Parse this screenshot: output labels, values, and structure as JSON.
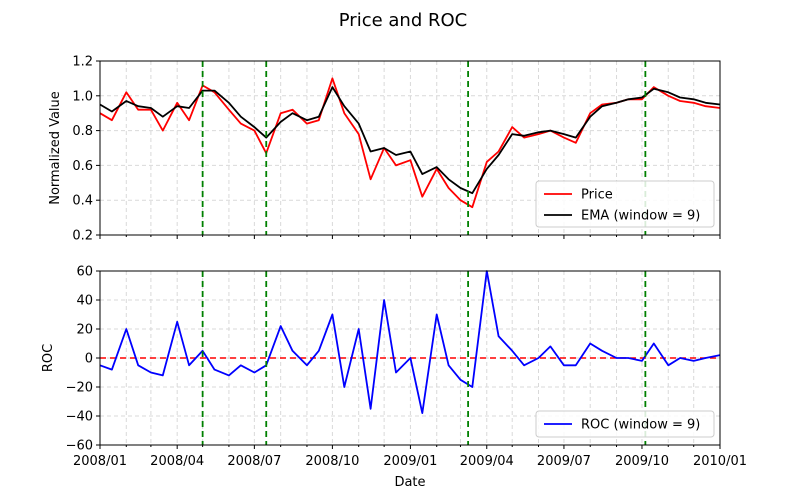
{
  "title": "Price and ROC",
  "colors": {
    "price": "#ff0000",
    "ema": "#000000",
    "roc": "#0000ff",
    "zero_line": "#ff0000",
    "event_lines": "#008000",
    "grid": "#d9d9d9"
  },
  "chart_data": [
    {
      "type": "line",
      "ylabel": "Normalized Value",
      "xlabel": "",
      "ylim": [
        0.2,
        1.2
      ],
      "yticks": [
        "0.2",
        "0.4",
        "0.6",
        "0.8",
        "1.0",
        "1.2"
      ],
      "grid": true,
      "legend_position": "lower-right",
      "event_dates": [
        "2008-05-01",
        "2008-07-15",
        "2009-03-10",
        "2009-10-05"
      ],
      "series": [
        {
          "name": "Price",
          "x": [
            "2008-01-01",
            "2008-01-15",
            "2008-02-01",
            "2008-02-15",
            "2008-03-01",
            "2008-03-15",
            "2008-04-01",
            "2008-04-15",
            "2008-05-01",
            "2008-05-15",
            "2008-06-01",
            "2008-06-15",
            "2008-07-01",
            "2008-07-15",
            "2008-08-01",
            "2008-08-15",
            "2008-09-01",
            "2008-09-15",
            "2008-10-01",
            "2008-10-15",
            "2008-11-01",
            "2008-11-15",
            "2008-12-01",
            "2008-12-15",
            "2009-01-01",
            "2009-01-15",
            "2009-02-01",
            "2009-02-15",
            "2009-03-01",
            "2009-03-15",
            "2009-04-01",
            "2009-04-15",
            "2009-05-01",
            "2009-05-15",
            "2009-06-01",
            "2009-06-15",
            "2009-07-01",
            "2009-07-15",
            "2009-08-01",
            "2009-08-15",
            "2009-09-01",
            "2009-09-15",
            "2009-10-01",
            "2009-10-15",
            "2009-11-01",
            "2009-11-15",
            "2009-12-01",
            "2009-12-15",
            "2010-01-01"
          ],
          "values": [
            0.9,
            0.86,
            1.02,
            0.92,
            0.92,
            0.8,
            0.96,
            0.86,
            1.06,
            1.02,
            0.92,
            0.84,
            0.8,
            0.67,
            0.9,
            0.92,
            0.84,
            0.86,
            1.1,
            0.9,
            0.78,
            0.52,
            0.7,
            0.6,
            0.63,
            0.42,
            0.58,
            0.47,
            0.4,
            0.36,
            0.62,
            0.68,
            0.82,
            0.76,
            0.78,
            0.8,
            0.76,
            0.73,
            0.9,
            0.95,
            0.96,
            0.98,
            0.98,
            1.05,
            1.0,
            0.97,
            0.96,
            0.94,
            0.93
          ]
        },
        {
          "name": "EMA (window = 9)",
          "x": [
            "2008-01-01",
            "2008-01-15",
            "2008-02-01",
            "2008-02-15",
            "2008-03-01",
            "2008-03-15",
            "2008-04-01",
            "2008-04-15",
            "2008-05-01",
            "2008-05-15",
            "2008-06-01",
            "2008-06-15",
            "2008-07-01",
            "2008-07-15",
            "2008-08-01",
            "2008-08-15",
            "2008-09-01",
            "2008-09-15",
            "2008-10-01",
            "2008-10-15",
            "2008-11-01",
            "2008-11-15",
            "2008-12-01",
            "2008-12-15",
            "2009-01-01",
            "2009-01-15",
            "2009-02-01",
            "2009-02-15",
            "2009-03-01",
            "2009-03-15",
            "2009-04-01",
            "2009-04-15",
            "2009-05-01",
            "2009-05-15",
            "2009-06-01",
            "2009-06-15",
            "2009-07-01",
            "2009-07-15",
            "2009-08-01",
            "2009-08-15",
            "2009-09-01",
            "2009-09-15",
            "2009-10-01",
            "2009-10-15",
            "2009-11-01",
            "2009-11-15",
            "2009-12-01",
            "2009-12-15",
            "2010-01-01"
          ],
          "values": [
            0.95,
            0.91,
            0.97,
            0.94,
            0.93,
            0.88,
            0.94,
            0.93,
            1.03,
            1.03,
            0.96,
            0.88,
            0.82,
            0.76,
            0.85,
            0.9,
            0.86,
            0.88,
            1.05,
            0.94,
            0.84,
            0.68,
            0.7,
            0.66,
            0.68,
            0.55,
            0.59,
            0.52,
            0.47,
            0.44,
            0.58,
            0.66,
            0.78,
            0.77,
            0.79,
            0.8,
            0.78,
            0.76,
            0.88,
            0.94,
            0.96,
            0.98,
            0.99,
            1.04,
            1.02,
            0.99,
            0.98,
            0.96,
            0.95
          ]
        }
      ]
    },
    {
      "type": "line",
      "ylabel": "ROC",
      "xlabel": "Date",
      "ylim": [
        -60,
        60
      ],
      "yticks": [
        "−60",
        "−40",
        "−20",
        "0",
        "20",
        "40",
        "60"
      ],
      "xlim": [
        "2008-01-01",
        "2010-01-01"
      ],
      "xticks": [
        "2008/01",
        "2008/04",
        "2008/07",
        "2008/10",
        "2009/01",
        "2009/04",
        "2009/07",
        "2009/10",
        "2010/01"
      ],
      "grid": true,
      "legend_position": "lower-right",
      "reference_line": 0,
      "event_dates": [
        "2008-05-01",
        "2008-07-15",
        "2009-03-10",
        "2009-10-05"
      ],
      "series": [
        {
          "name": "ROC (window = 9)",
          "x": [
            "2008-01-01",
            "2008-01-15",
            "2008-02-01",
            "2008-02-15",
            "2008-03-01",
            "2008-03-15",
            "2008-04-01",
            "2008-04-15",
            "2008-05-01",
            "2008-05-15",
            "2008-06-01",
            "2008-06-15",
            "2008-07-01",
            "2008-07-15",
            "2008-08-01",
            "2008-08-15",
            "2008-09-01",
            "2008-09-15",
            "2008-10-01",
            "2008-10-15",
            "2008-11-01",
            "2008-11-15",
            "2008-12-01",
            "2008-12-15",
            "2009-01-01",
            "2009-01-15",
            "2009-02-01",
            "2009-02-15",
            "2009-03-01",
            "2009-03-15",
            "2009-04-01",
            "2009-04-15",
            "2009-05-01",
            "2009-05-15",
            "2009-06-01",
            "2009-06-15",
            "2009-07-01",
            "2009-07-15",
            "2009-08-01",
            "2009-08-15",
            "2009-09-01",
            "2009-09-15",
            "2009-10-01",
            "2009-10-15",
            "2009-11-01",
            "2009-11-15",
            "2009-12-01",
            "2009-12-15",
            "2010-01-01"
          ],
          "values": [
            -5,
            -8,
            20,
            -5,
            -10,
            -12,
            25,
            -5,
            5,
            -8,
            -12,
            -5,
            -10,
            -5,
            22,
            5,
            -5,
            5,
            30,
            -20,
            20,
            -35,
            40,
            -10,
            0,
            -38,
            30,
            -5,
            -15,
            -20,
            60,
            15,
            5,
            -5,
            0,
            8,
            -5,
            -5,
            10,
            5,
            0,
            0,
            -2,
            10,
            -5,
            0,
            -2,
            0,
            2
          ]
        }
      ]
    }
  ]
}
